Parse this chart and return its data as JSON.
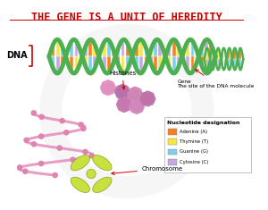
{
  "title": "THE GENE IS A UNIT OF HEREDITY",
  "title_color": "#cc0000",
  "title_fontsize": 8.5,
  "bg_color": "#ffffff",
  "dna_label": "DNA",
  "histones_label": "Histones",
  "gene_label": "Gene\nThe site of the DNA molecule",
  "chromosome_label": "Chromosome",
  "legend_title": "Nucleotide designation",
  "legend_items": [
    {
      "label": "Adenine (A)",
      "color": "#f5821f"
    },
    {
      "label": "Thymine (T)",
      "color": "#f5e642"
    },
    {
      "label": "Guanine (G)",
      "color": "#7ecfed"
    },
    {
      "label": "Cytosine (C)",
      "color": "#c8a8e0"
    }
  ],
  "watermark_color": "#d0d0d0",
  "arrow_color": "#cc0000",
  "green_strand": "#4caf50",
  "pink_chrom": "#e080b0",
  "chrom_color": "#c8e040"
}
